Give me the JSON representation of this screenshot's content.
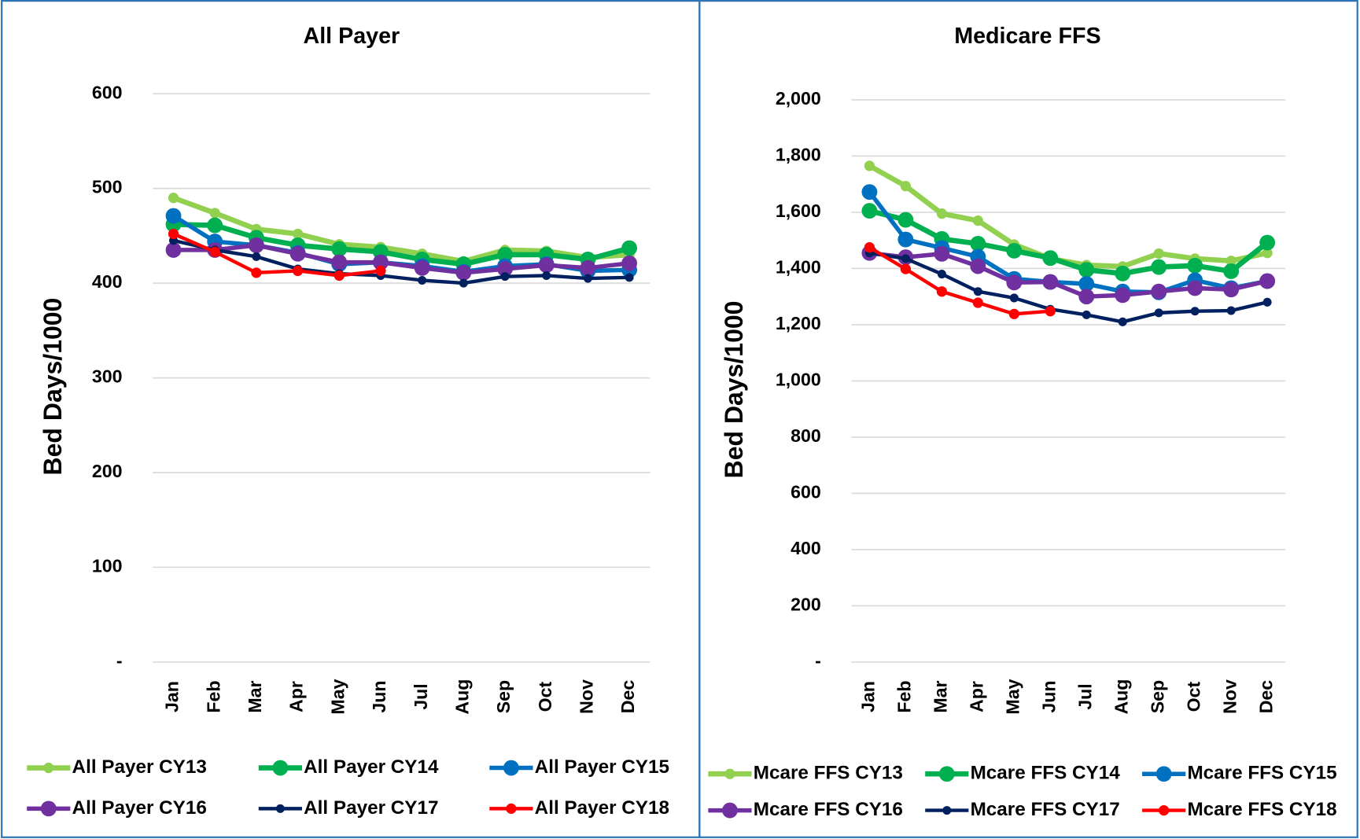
{
  "chart_data": [
    {
      "type": "line",
      "title": "All Payer",
      "y_label": "Bed Days/1000",
      "categories": [
        "Jan",
        "Feb",
        "Mar",
        "Apr",
        "May",
        "Jun",
        "Jul",
        "Aug",
        "Sep",
        "Oct",
        "Nov",
        "Dec"
      ],
      "ylim": [
        0,
        600
      ],
      "yticks": [
        {
          "value": 0,
          "label": "-"
        },
        100,
        200,
        300,
        400,
        500,
        600
      ],
      "grid": true,
      "series": [
        {
          "name": "All Payer CY13",
          "color": "#92d050",
          "values": [
            490,
            474,
            457,
            452,
            441,
            438,
            431,
            423,
            435,
            434,
            427,
            430
          ]
        },
        {
          "name": "All Payer CY14",
          "color": "#00b050",
          "values": [
            462,
            461,
            448,
            440,
            436,
            433,
            425,
            420,
            430,
            430,
            425,
            437
          ]
        },
        {
          "name": "All Payer CY15",
          "color": "#0070c0",
          "values": [
            471,
            444,
            440,
            432,
            420,
            422,
            418,
            412,
            418,
            420,
            413,
            414
          ]
        },
        {
          "name": "All Payer CY16",
          "color": "#7030a0",
          "values": [
            435,
            435,
            440,
            431,
            422,
            422,
            416,
            411,
            415,
            419,
            416,
            421
          ]
        },
        {
          "name": "All Payer CY17",
          "color": "#002060",
          "values": [
            445,
            435,
            428,
            415,
            410,
            408,
            403,
            400,
            407,
            408,
            405,
            406
          ]
        },
        {
          "name": "All Payer CY18",
          "color": "#ff0000",
          "values": [
            452,
            433,
            411,
            413,
            408,
            413,
            null,
            null,
            null,
            null,
            null,
            null
          ]
        }
      ]
    },
    {
      "type": "line",
      "title": "Medicare FFS",
      "y_label": "Bed Days/1000",
      "categories": [
        "Jan",
        "Feb",
        "Mar",
        "Apr",
        "May",
        "Jun",
        "Jul",
        "Aug",
        "Sep",
        "Oct",
        "Nov",
        "Dec"
      ],
      "ylim": [
        0,
        2000
      ],
      "yticks": [
        {
          "value": 0,
          "label": "-"
        },
        200,
        400,
        600,
        800,
        {
          "value": 1000,
          "label": "1,000"
        },
        {
          "value": 1200,
          "label": "1,200"
        },
        {
          "value": 1400,
          "label": "1,400"
        },
        {
          "value": 1600,
          "label": "1,600"
        },
        {
          "value": 1800,
          "label": "1,800"
        },
        {
          "value": 2000,
          "label": "2,000"
        }
      ],
      "grid": true,
      "series": [
        {
          "name": "Mcare FFS CY13",
          "color": "#92d050",
          "values": [
            1765,
            1693,
            1595,
            1570,
            1485,
            1435,
            1412,
            1407,
            1453,
            1435,
            1427,
            1455
          ]
        },
        {
          "name": "Mcare FFS CY14",
          "color": "#00b050",
          "values": [
            1605,
            1573,
            1505,
            1488,
            1463,
            1437,
            1395,
            1382,
            1405,
            1410,
            1390,
            1492
          ]
        },
        {
          "name": "Mcare FFS CY15",
          "color": "#0070c0",
          "values": [
            1672,
            1503,
            1473,
            1442,
            1363,
            1352,
            1345,
            1318,
            1315,
            1358,
            1330,
            1355
          ]
        },
        {
          "name": "Mcare FFS CY16",
          "color": "#7030a0",
          "values": [
            1455,
            1440,
            1452,
            1408,
            1350,
            1352,
            1300,
            1305,
            1318,
            1330,
            1325,
            1355
          ]
        },
        {
          "name": "Mcare FFS CY17",
          "color": "#002060",
          "values": [
            1455,
            1435,
            1380,
            1318,
            1295,
            1255,
            1235,
            1210,
            1242,
            1248,
            1250,
            1280
          ]
        },
        {
          "name": "Mcare FFS CY18",
          "color": "#ff0000",
          "values": [
            1475,
            1398,
            1318,
            1278,
            1238,
            1248,
            null,
            null,
            null,
            null,
            null,
            null
          ]
        }
      ]
    }
  ]
}
